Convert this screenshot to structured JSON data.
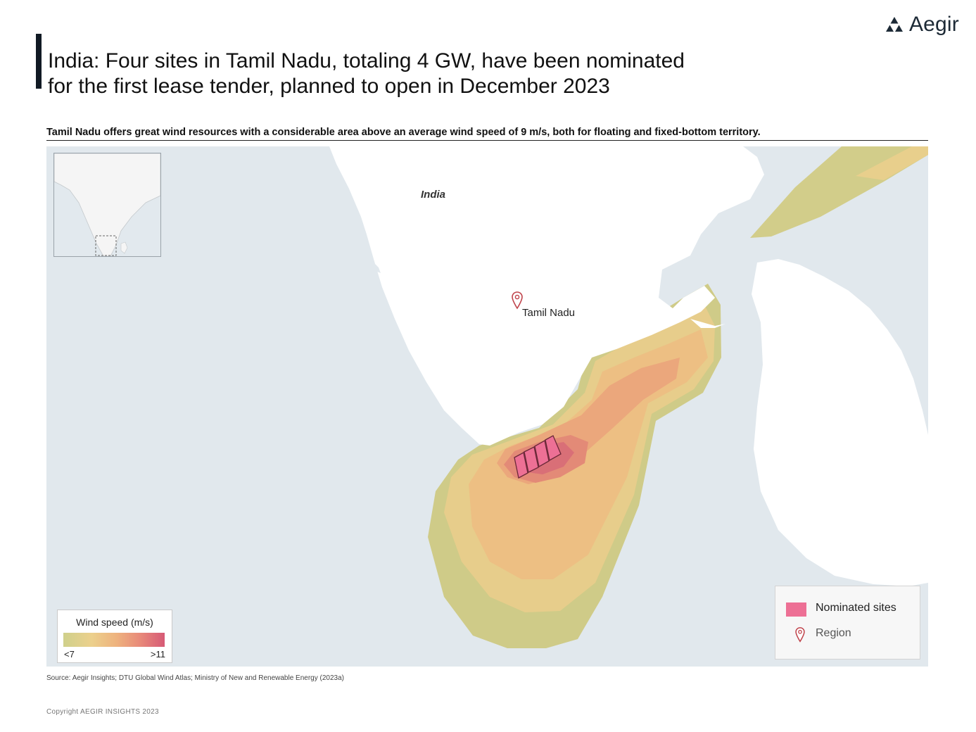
{
  "header": {
    "title_line1": "India: Four sites in Tamil Nadu, totaling 4 GW, have been nominated",
    "title_line2": "for the first lease tender, planned to open in December 2023",
    "logo_text": "Aegir"
  },
  "subtitle": "Tamil Nadu offers great wind resources with a considerable area above an average wind speed of 9 m/s, both for floating and fixed-bottom territory.",
  "map": {
    "labels": {
      "country": "India",
      "region": "Tamil Nadu"
    },
    "colors": {
      "sea": "#e1e8ed",
      "land": "#ffffff",
      "site": "#ed7095",
      "pin": "#c0444c"
    },
    "nominated_sites_count": 4
  },
  "legend_wind": {
    "title": "Wind speed (m/s)",
    "min_label": "<7",
    "max_label": ">11",
    "colors": [
      "#cfd08b",
      "#ecd08c",
      "#eeb37e",
      "#e88979",
      "#d65a76"
    ]
  },
  "legend_sites": {
    "sites_label": "Nominated sites",
    "region_label": "Region",
    "icons": [
      "site-swatch",
      "map-pin-icon"
    ]
  },
  "source": "Source: Aegir Insights; DTU  Global Wind Atlas; Ministry of New and Renewable Energy (2023a)",
  "copyright": "Copyright AEGIR INSIGHTS  2023"
}
